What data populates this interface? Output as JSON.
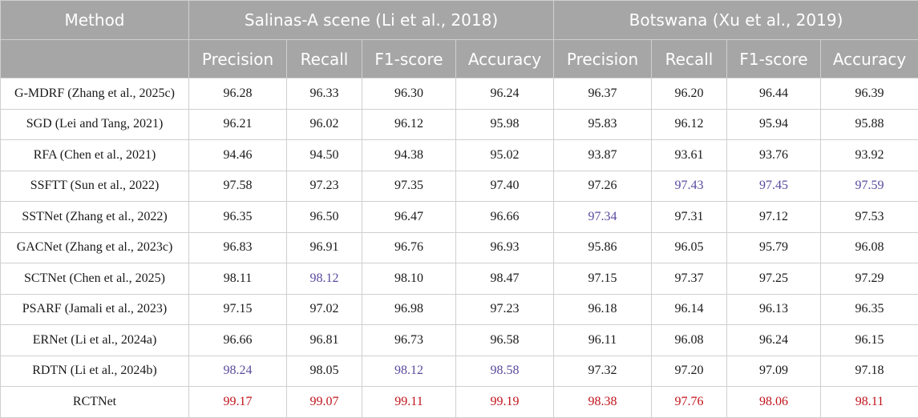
{
  "header": {
    "method": "Method",
    "group1": "Salinas-A scene (Li et al., 2018)",
    "group2": "Botswana (Xu et al., 2019)",
    "metrics": [
      "Precision",
      "Recall",
      "F1-score",
      "Accuracy",
      "Precision",
      "Recall",
      "F1-score",
      "Accuracy"
    ]
  },
  "colors": {
    "header_bg": "#a6a6a6",
    "second_best": "#5b4a9e",
    "best": "#c0141b"
  },
  "rows": [
    {
      "method": "G-MDRF (Zhang et al., 2025c)",
      "values": [
        "96.28",
        "96.33",
        "96.30",
        "96.24",
        "96.37",
        "96.20",
        "96.44",
        "96.39"
      ],
      "colors": [
        "",
        "",
        "",
        "",
        "",
        "",
        "",
        ""
      ]
    },
    {
      "method": "SGD (Lei and Tang, 2021)",
      "values": [
        "96.21",
        "96.02",
        "96.12",
        "95.98",
        "95.83",
        "96.12",
        "95.94",
        "95.88"
      ],
      "colors": [
        "",
        "",
        "",
        "",
        "",
        "",
        "",
        ""
      ]
    },
    {
      "method": "RFA (Chen et al., 2021)",
      "values": [
        "94.46",
        "94.50",
        "94.38",
        "95.02",
        "93.87",
        "93.61",
        "93.76",
        "93.92"
      ],
      "colors": [
        "",
        "",
        "",
        "",
        "",
        "",
        "",
        ""
      ]
    },
    {
      "method": "SSFTT (Sun et al., 2022)",
      "values": [
        "97.58",
        "97.23",
        "97.35",
        "97.40",
        "97.26",
        "97.43",
        "97.45",
        "97.59"
      ],
      "colors": [
        "",
        "",
        "",
        "",
        "",
        "blue",
        "blue",
        "blue"
      ]
    },
    {
      "method": "SSTNet (Zhang et al., 2022)",
      "values": [
        "96.35",
        "96.50",
        "96.47",
        "96.66",
        "97.34",
        "97.31",
        "97.12",
        "97.53"
      ],
      "colors": [
        "",
        "",
        "",
        "",
        "blue",
        "",
        "",
        ""
      ]
    },
    {
      "method": "GACNet (Zhang et al., 2023c)",
      "values": [
        "96.83",
        "96.91",
        "96.76",
        "96.93",
        "95.86",
        "96.05",
        "95.79",
        "96.08"
      ],
      "colors": [
        "",
        "",
        "",
        "",
        "",
        "",
        "",
        ""
      ]
    },
    {
      "method": "SCTNet (Chen et al., 2025)",
      "values": [
        "98.11",
        "98.12",
        "98.10",
        "98.47",
        "97.15",
        "97.37",
        "97.25",
        "97.29"
      ],
      "colors": [
        "",
        "blue",
        "",
        "",
        "",
        "",
        "",
        ""
      ]
    },
    {
      "method": "PSARF (Jamali et al., 2023)",
      "values": [
        "97.15",
        "97.02",
        "96.98",
        "97.23",
        "96.18",
        "96.14",
        "96.13",
        "96.35"
      ],
      "colors": [
        "",
        "",
        "",
        "",
        "",
        "",
        "",
        ""
      ]
    },
    {
      "method": "ERNet (Li et al., 2024a)",
      "values": [
        "96.66",
        "96.81",
        "96.73",
        "96.58",
        "96.11",
        "96.08",
        "96.24",
        "96.15"
      ],
      "colors": [
        "",
        "",
        "",
        "",
        "",
        "",
        "",
        ""
      ]
    },
    {
      "method": "RDTN (Li et al., 2024b)",
      "values": [
        "98.24",
        "98.05",
        "98.12",
        "98.58",
        "97.32",
        "97.20",
        "97.09",
        "97.18"
      ],
      "colors": [
        "blue",
        "",
        "blue",
        "blue",
        "",
        "",
        "",
        ""
      ]
    },
    {
      "method": "RCTNet",
      "values": [
        "99.17",
        "99.07",
        "99.11",
        "99.19",
        "98.38",
        "97.76",
        "98.06",
        "98.11"
      ],
      "colors": [
        "red",
        "red",
        "red",
        "red",
        "red",
        "red",
        "red",
        "red"
      ]
    }
  ]
}
